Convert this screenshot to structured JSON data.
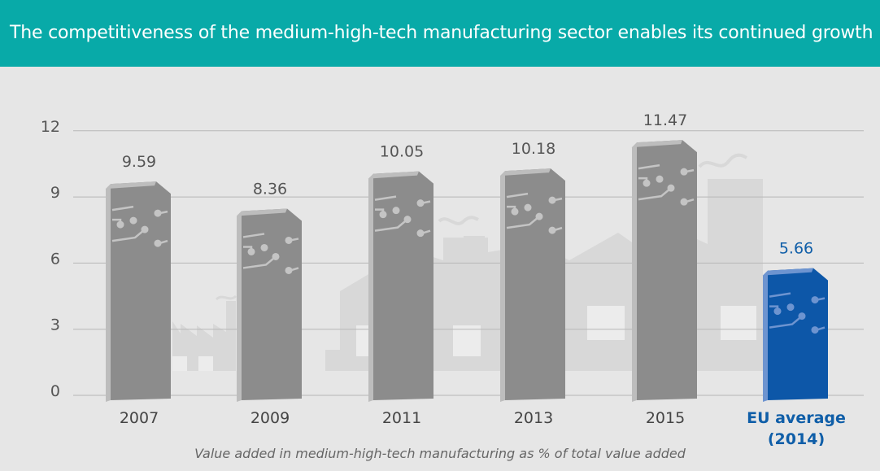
{
  "header": {
    "title": "The competitiveness of the medium-high-tech manufacturing sector enables its continued growth"
  },
  "colors": {
    "header_bg": "#08aaa8",
    "bar": "#8c8c8c",
    "bar_side": "#707070",
    "bar_top": "#bdbdbd",
    "eu_bar": "#0d57a8",
    "eu_side": "#0a4185",
    "eu_top": "#6d94d0",
    "eu_text": "#0f5ea8",
    "gridline": "#b7b7b7",
    "factory": "#d8d8d8"
  },
  "chart_data": {
    "type": "bar",
    "title": "The competitiveness of the medium-high-tech manufacturing sector enables its continued growth",
    "caption": "Value added in medium-high-tech manufacturing as % of total value added",
    "categories": [
      {
        "lines": [
          "2007"
        ]
      },
      {
        "lines": [
          "2009"
        ]
      },
      {
        "lines": [
          "2011"
        ]
      },
      {
        "lines": [
          "2013"
        ]
      },
      {
        "lines": [
          "2015"
        ]
      },
      {
        "lines": [
          "EU average",
          "(2014)"
        ],
        "highlight": true
      }
    ],
    "values": [
      9.59,
      8.36,
      10.05,
      10.18,
      11.47,
      5.66
    ],
    "value_labels": [
      "9.59",
      "8.36",
      "10.05",
      "10.18",
      "11.47",
      "5.66"
    ],
    "ylim": [
      0,
      12
    ],
    "yticks": [
      0,
      3,
      6,
      9,
      12
    ],
    "xlabel": "",
    "ylabel": "",
    "grid": true,
    "legend": "none"
  }
}
